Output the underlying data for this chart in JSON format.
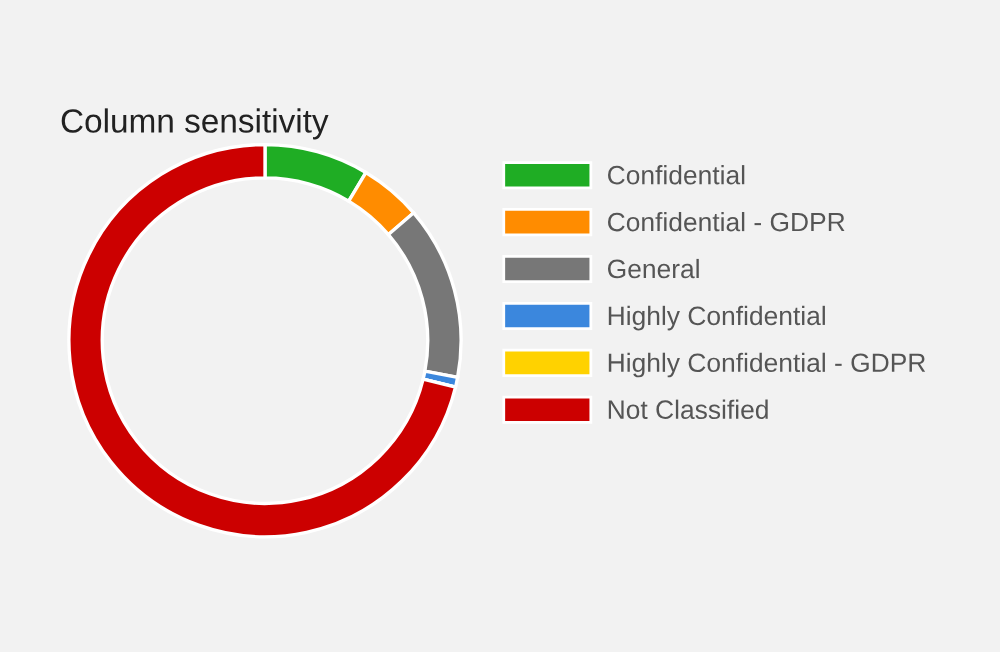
{
  "chart_data": {
    "type": "donut",
    "title": "Column sensitivity",
    "categories": [
      "Confidential",
      "Confidential - GDPR",
      "General",
      "Highly Confidential",
      "Highly Confidential - GDPR",
      "Not Classified"
    ],
    "values": [
      8.6,
      5.1,
      14.3,
      0.8,
      0,
      71.2
    ],
    "colors": [
      "#1fad24",
      "#ff8c00",
      "#777777",
      "#3b87dd",
      "#ffd200",
      "#cc0000"
    ],
    "legend": "right"
  }
}
